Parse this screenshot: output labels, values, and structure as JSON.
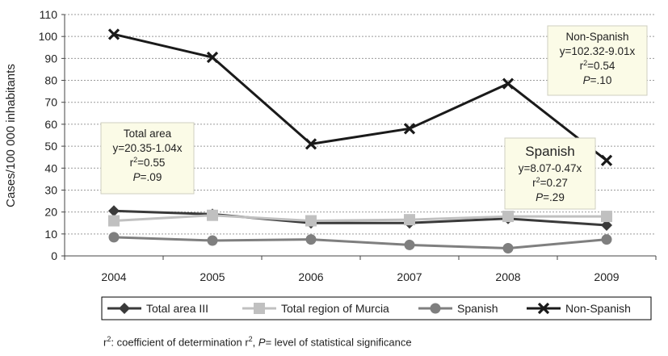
{
  "chart_data": {
    "type": "line",
    "ylabel": "Cases/100 000 inhabitants",
    "xlabel": "",
    "categories": [
      "2004",
      "2005",
      "2006",
      "2007",
      "2008",
      "2009"
    ],
    "ylim": [
      0,
      110
    ],
    "yticks": [
      0,
      10,
      20,
      30,
      40,
      50,
      60,
      70,
      80,
      90,
      100,
      110
    ],
    "grid": "horizontal dotted",
    "legend_position": "bottom",
    "series": [
      {
        "name": "Total area III",
        "values": [
          20.5,
          19,
          15,
          15,
          17,
          14
        ],
        "color": "#3a3a3a",
        "marker": "diamond"
      },
      {
        "name": "Total region of Murcia",
        "values": [
          16,
          18.5,
          16,
          16.5,
          18,
          18
        ],
        "color": "#c0c0c0",
        "marker": "square"
      },
      {
        "name": "Spanish",
        "values": [
          8.5,
          7,
          7.5,
          5,
          3.5,
          7.5
        ],
        "color": "#7f7f7f",
        "marker": "circle"
      },
      {
        "name": "Non-Spanish",
        "values": [
          101,
          90.5,
          51,
          58,
          78.5,
          43.5
        ],
        "color": "#1a1a1a",
        "marker": "x"
      }
    ],
    "annotations": [
      {
        "id": "total",
        "lines": [
          "Total area",
          "y=20.35-1.04x",
          "r2=0.55",
          "P=.09"
        ]
      },
      {
        "id": "spanish",
        "lines": [
          "Spanish",
          "y=8.07-0.47x",
          "r2=0.27",
          "P=.29"
        ]
      },
      {
        "id": "nonspanish",
        "lines": [
          "Non-Spanish",
          "y=102.32-9.01x",
          "r2=0.54",
          "P=.10"
        ]
      }
    ]
  },
  "footnote": {
    "r": "r",
    "sup1": "2",
    "part1": ": coefficient of determination r",
    "sup2": "2",
    "part2": ", ",
    "p": "P",
    "part3": "= level of statistical significance"
  }
}
